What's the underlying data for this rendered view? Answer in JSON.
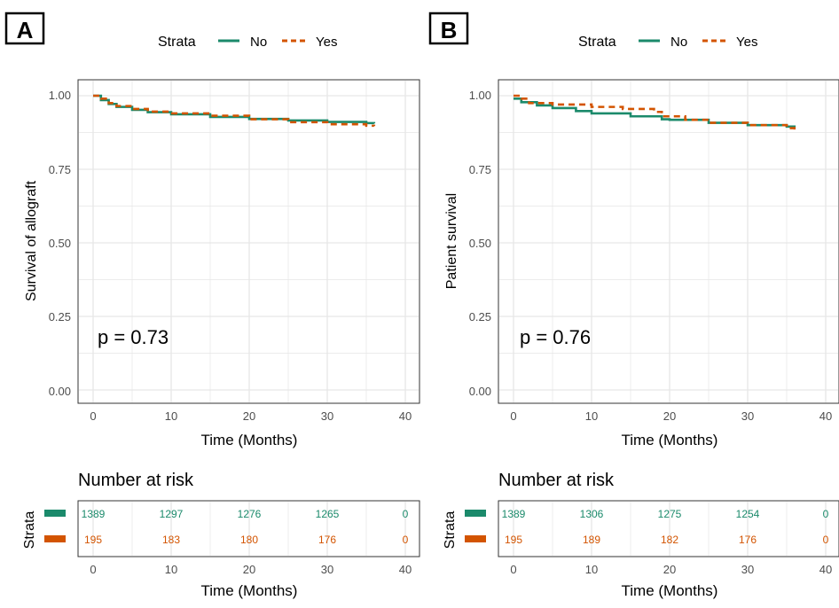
{
  "colors": {
    "no": "#1b8a6b",
    "yes": "#d35400",
    "grid": "#e6e6e6",
    "axis_text": "#4d4d4d",
    "frame": "#333333"
  },
  "legend": {
    "title": "Strata",
    "items": [
      {
        "label": "No",
        "color": "#1b8a6b",
        "dash": "solid"
      },
      {
        "label": "Yes",
        "color": "#d35400",
        "dash": "dashed"
      }
    ]
  },
  "risk_table": {
    "title": "Number at risk",
    "strata_label": "Strata"
  },
  "chart_data": [
    {
      "panel_label": "A",
      "type": "line",
      "step": true,
      "xlabel": "Time (Months)",
      "ylabel": "Survival of allograft",
      "xlim": [
        0,
        40
      ],
      "ylim": [
        0,
        1
      ],
      "xticks": [
        "0",
        "10",
        "20",
        "30",
        "40"
      ],
      "yticks": [
        "0.00",
        "0.25",
        "0.50",
        "0.75",
        "1.00"
      ],
      "grid": true,
      "legend_position": "top",
      "annotation": "p = 0.73",
      "series": [
        {
          "name": "No",
          "x": [
            0,
            1,
            2,
            3,
            5,
            7,
            10,
            15,
            20,
            25,
            30,
            35,
            36
          ],
          "y": [
            1.0,
            0.985,
            0.972,
            0.962,
            0.952,
            0.944,
            0.937,
            0.928,
            0.921,
            0.916,
            0.911,
            0.907,
            0.906
          ]
        },
        {
          "name": "Yes",
          "x": [
            0,
            1,
            2,
            3,
            5,
            7,
            10,
            15,
            20,
            25,
            30,
            35,
            36
          ],
          "y": [
            1.0,
            0.99,
            0.975,
            0.965,
            0.955,
            0.946,
            0.94,
            0.932,
            0.92,
            0.91,
            0.903,
            0.898,
            0.897
          ]
        }
      ],
      "risk_table": {
        "times": [
          "0",
          "10",
          "20",
          "30",
          "40"
        ],
        "rows": [
          {
            "name": "No",
            "values": [
              "1389",
              "1297",
              "1276",
              "1265",
              "0"
            ]
          },
          {
            "name": "Yes",
            "values": [
              "195",
              "183",
              "180",
              "176",
              "0"
            ]
          }
        ]
      }
    },
    {
      "panel_label": "B",
      "type": "line",
      "step": true,
      "xlabel": "Time (Months)",
      "ylabel": "Patient survival",
      "xlim": [
        0,
        40
      ],
      "ylim": [
        0,
        1
      ],
      "xticks": [
        "0",
        "10",
        "20",
        "30",
        "40"
      ],
      "yticks": [
        "0.00",
        "0.25",
        "0.50",
        "0.75",
        "1.00"
      ],
      "grid": true,
      "legend_position": "top",
      "annotation": "p = 0.76",
      "series": [
        {
          "name": "No",
          "x": [
            0,
            1,
            3,
            5,
            8,
            10,
            15,
            19,
            20,
            25,
            30,
            35,
            36
          ],
          "y": [
            0.99,
            0.978,
            0.967,
            0.958,
            0.948,
            0.94,
            0.93,
            0.92,
            0.918,
            0.908,
            0.9,
            0.895,
            0.893
          ]
        },
        {
          "name": "Yes",
          "x": [
            0,
            1,
            2,
            5,
            10,
            14,
            18,
            19,
            22,
            25,
            30,
            35,
            36
          ],
          "y": [
            1.0,
            0.99,
            0.975,
            0.97,
            0.962,
            0.955,
            0.945,
            0.93,
            0.918,
            0.908,
            0.9,
            0.89,
            0.885
          ]
        }
      ],
      "risk_table": {
        "times": [
          "0",
          "10",
          "20",
          "30",
          "40"
        ],
        "rows": [
          {
            "name": "No",
            "values": [
              "1389",
              "1306",
              "1275",
              "1254",
              "0"
            ]
          },
          {
            "name": "Yes",
            "values": [
              "195",
              "189",
              "182",
              "176",
              "0"
            ]
          }
        ]
      }
    }
  ]
}
